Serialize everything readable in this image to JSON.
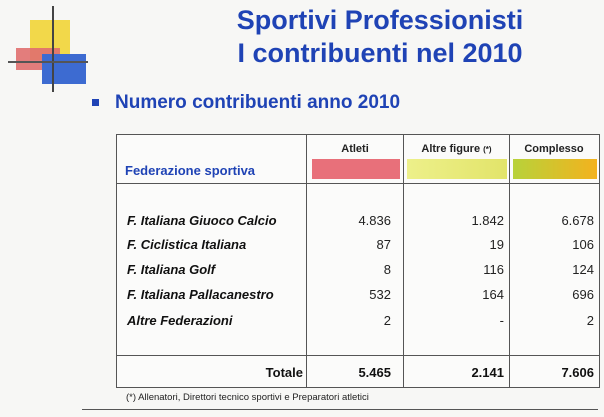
{
  "title": {
    "line1": "Sportivi Professionisti",
    "line2": "I contribuenti nel 2010"
  },
  "subtitle": "Numero contribuenti anno 2010",
  "table": {
    "headers": {
      "atleti": "Atleti",
      "altre": "Altre figure",
      "altre_note": "(*)",
      "complesso": "Complesso"
    },
    "row_header": "Federazione sportiva",
    "rows": [
      {
        "name": "F. Italiana Giuoco Calcio",
        "atleti": "4.836",
        "altre": "1.842",
        "complesso": "6.678"
      },
      {
        "name": "F. Ciclistica Italiana",
        "atleti": "87",
        "altre": "19",
        "complesso": "106"
      },
      {
        "name": "F. Italiana Golf",
        "atleti": "8",
        "altre": "116",
        "complesso": "124"
      },
      {
        "name": "F. Italiana Pallacanestro",
        "atleti": "532",
        "altre": "164",
        "complesso": "696"
      },
      {
        "name": "Altre Federazioni",
        "atleti": "2",
        "altre": "-",
        "complesso": "2"
      }
    ],
    "total": {
      "label": "Totale",
      "atleti": "5.465",
      "altre": "2.141",
      "complesso": "7.606"
    }
  },
  "footnote": "(*) Allenatori, Direttori tecnico sportivi e Preparatori atletici",
  "colors": {
    "title": "#1f43b5",
    "atleti_bar": "#e8707a",
    "altre_bar": "#e9eb7c",
    "complesso_bar_left": "#b8d23a",
    "complesso_bar_right": "#f3b21e"
  }
}
